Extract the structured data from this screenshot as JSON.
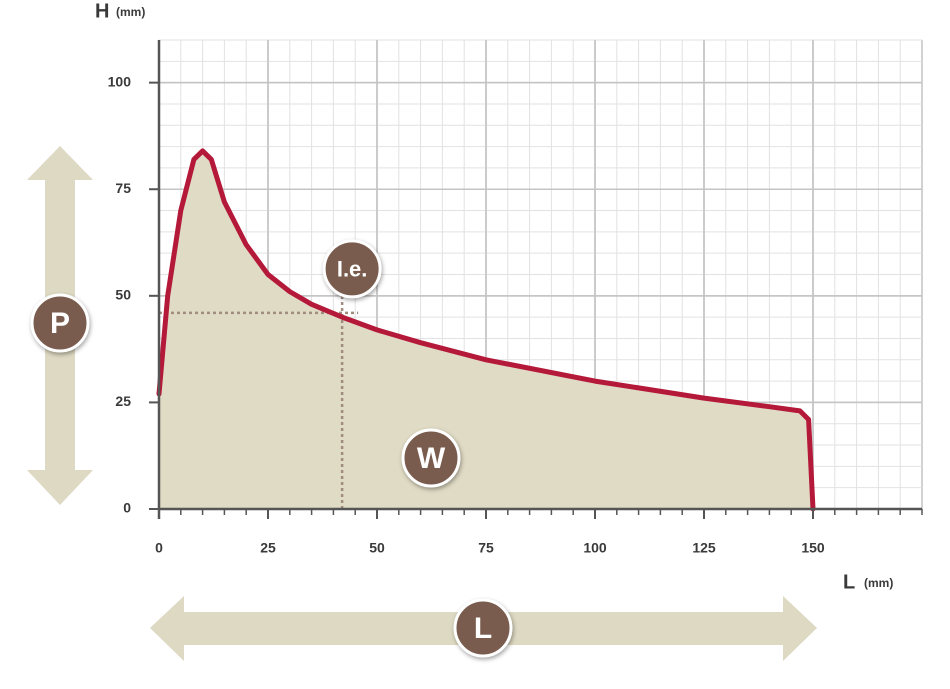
{
  "chart_data": {
    "type": "area",
    "y_label": "H",
    "y_unit": "(mm)",
    "x_label": "L",
    "x_unit": "(mm)",
    "x": [
      0,
      2,
      5,
      8,
      10,
      12,
      15,
      20,
      25,
      30,
      35,
      42,
      50,
      60,
      75,
      100,
      125,
      140,
      147,
      149,
      150
    ],
    "values": [
      27,
      50,
      70,
      82,
      84,
      82,
      72,
      62,
      55,
      51,
      48,
      45,
      42,
      39,
      35,
      30,
      26,
      24,
      23,
      21,
      0
    ],
    "color": "#b5193a",
    "fill_color": "#e0dbc4",
    "xlim": [
      0,
      175
    ],
    "ylim": [
      0,
      110
    ],
    "xticks": [
      0,
      25,
      50,
      75,
      100,
      125,
      150
    ],
    "yticks": [
      0,
      25,
      50,
      75,
      100
    ],
    "grid": true,
    "ie_point": {
      "label": "I.e.",
      "x": 42,
      "y": 46
    },
    "area_label": "W",
    "height_label": "P",
    "length_label": "L"
  }
}
